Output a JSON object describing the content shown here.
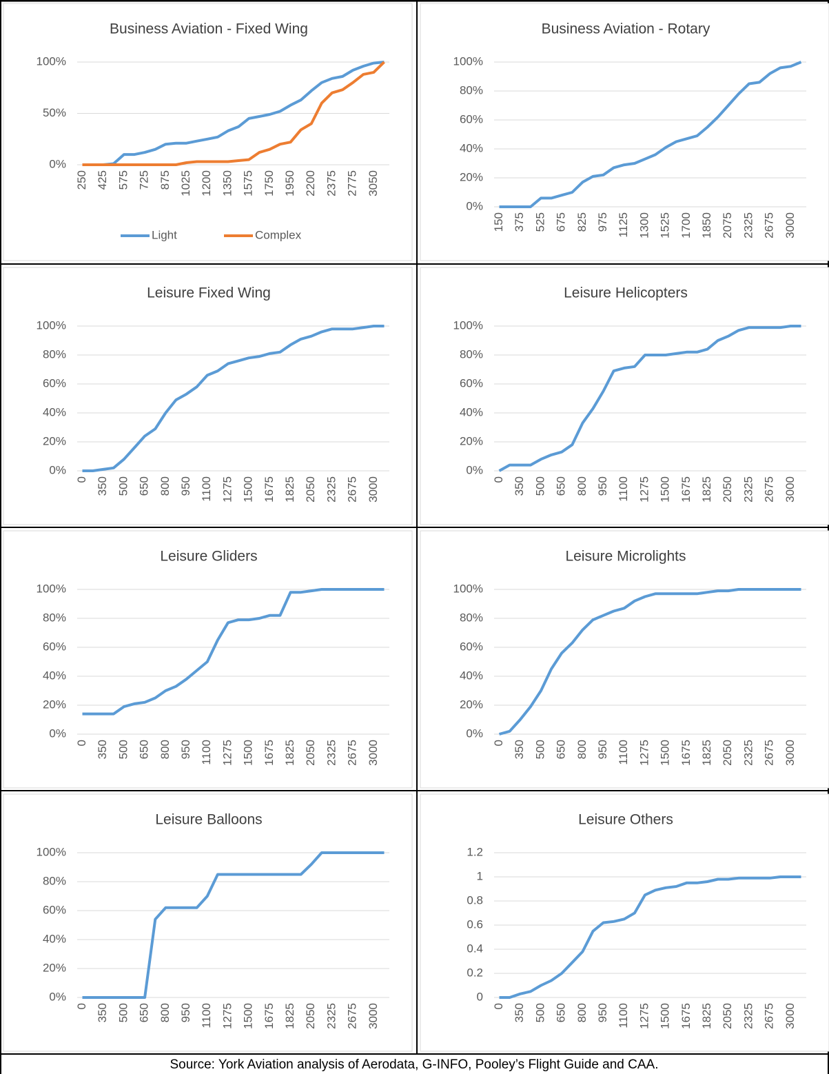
{
  "chart_data": [
    {
      "type": "line",
      "title": "Business Aviation - Fixed Wing",
      "legend": "bottom",
      "grid": true,
      "categories": [
        250,
        null,
        425,
        null,
        575,
        null,
        725,
        null,
        875,
        null,
        1025,
        null,
        1200,
        null,
        1350,
        null,
        1575,
        null,
        1750,
        null,
        1950,
        null,
        2200,
        null,
        2375,
        null,
        2775,
        null,
        3050,
        null
      ],
      "ylim": [
        0,
        100
      ],
      "yticks": [
        {
          "value": 0,
          "label": "0%"
        },
        {
          "value": 50,
          "label": "50%"
        },
        {
          "value": 100,
          "label": "100%"
        }
      ],
      "series": [
        {
          "name": "Light",
          "color": "#5b9bd5",
          "values": [
            0,
            0,
            0,
            1,
            10,
            10,
            12,
            15,
            20,
            21,
            21,
            23,
            25,
            27,
            33,
            37,
            45,
            47,
            49,
            52,
            58,
            63,
            72,
            80,
            84,
            86,
            92,
            96,
            99,
            100
          ]
        },
        {
          "name": "Complex",
          "color": "#ed7d31",
          "values": [
            0,
            0,
            0,
            0,
            0,
            0,
            0,
            0,
            0,
            0,
            2,
            3,
            3,
            3,
            3,
            4,
            5,
            12,
            15,
            20,
            22,
            34,
            40,
            60,
            70,
            73,
            80,
            88,
            90,
            100
          ]
        }
      ]
    },
    {
      "type": "line",
      "title": "Business Aviation - Rotary",
      "grid": true,
      "categories": [
        150,
        null,
        375,
        null,
        525,
        null,
        675,
        null,
        825,
        null,
        975,
        null,
        1125,
        null,
        1300,
        null,
        1525,
        null,
        1700,
        null,
        1850,
        null,
        2075,
        null,
        2325,
        null,
        2675,
        null,
        3000,
        null
      ],
      "ylim": [
        0,
        100
      ],
      "yticks": [
        {
          "value": 0,
          "label": "0%"
        },
        {
          "value": 20,
          "label": "20%"
        },
        {
          "value": 40,
          "label": "40%"
        },
        {
          "value": 60,
          "label": "60%"
        },
        {
          "value": 80,
          "label": "80%"
        },
        {
          "value": 100,
          "label": "100%"
        }
      ],
      "series": [
        {
          "color": "#5b9bd5",
          "values": [
            0,
            0,
            0,
            0,
            6,
            6,
            8,
            10,
            17,
            21,
            22,
            27,
            29,
            30,
            33,
            36,
            41,
            45,
            47,
            49,
            55,
            62,
            70,
            78,
            85,
            86,
            92,
            96,
            97,
            100
          ]
        }
      ]
    },
    {
      "type": "line",
      "title": "Leisure Fixed Wing",
      "grid": true,
      "categories": [
        0,
        null,
        350,
        null,
        500,
        null,
        650,
        null,
        800,
        null,
        950,
        null,
        1100,
        null,
        1275,
        null,
        1500,
        null,
        1675,
        null,
        1825,
        null,
        2050,
        null,
        2325,
        null,
        2675,
        null,
        3000,
        null
      ],
      "ylim": [
        0,
        100
      ],
      "yticks": [
        {
          "value": 0,
          "label": "0%"
        },
        {
          "value": 20,
          "label": "20%"
        },
        {
          "value": 40,
          "label": "40%"
        },
        {
          "value": 60,
          "label": "60%"
        },
        {
          "value": 80,
          "label": "80%"
        },
        {
          "value": 100,
          "label": "100%"
        }
      ],
      "series": [
        {
          "color": "#5b9bd5",
          "values": [
            0,
            0,
            1,
            2,
            8,
            16,
            24,
            29,
            40,
            49,
            53,
            58,
            66,
            69,
            74,
            76,
            78,
            79,
            81,
            82,
            87,
            91,
            93,
            96,
            98,
            98,
            98,
            99,
            100,
            100
          ]
        }
      ]
    },
    {
      "type": "line",
      "title": "Leisure Helicopters",
      "grid": true,
      "categories": [
        0,
        null,
        350,
        null,
        500,
        null,
        650,
        null,
        800,
        null,
        950,
        null,
        1100,
        null,
        1275,
        null,
        1500,
        null,
        1675,
        null,
        1825,
        null,
        2050,
        null,
        2325,
        null,
        2675,
        null,
        3000,
        null
      ],
      "ylim": [
        0,
        100
      ],
      "yticks": [
        {
          "value": 0,
          "label": "0%"
        },
        {
          "value": 20,
          "label": "20%"
        },
        {
          "value": 40,
          "label": "40%"
        },
        {
          "value": 60,
          "label": "60%"
        },
        {
          "value": 80,
          "label": "80%"
        },
        {
          "value": 100,
          "label": "100%"
        }
      ],
      "series": [
        {
          "color": "#5b9bd5",
          "values": [
            0,
            4,
            4,
            4,
            8,
            11,
            13,
            18,
            33,
            43,
            55,
            69,
            71,
            72,
            80,
            80,
            80,
            81,
            82,
            82,
            84,
            90,
            93,
            97,
            99,
            99,
            99,
            99,
            100,
            100
          ]
        }
      ]
    },
    {
      "type": "line",
      "title": "Leisure Gliders",
      "grid": true,
      "categories": [
        0,
        null,
        350,
        null,
        500,
        null,
        650,
        null,
        800,
        null,
        950,
        null,
        1100,
        null,
        1275,
        null,
        1500,
        null,
        1675,
        null,
        1825,
        null,
        2050,
        null,
        2325,
        null,
        2675,
        null,
        3000,
        null
      ],
      "ylim": [
        0,
        100
      ],
      "yticks": [
        {
          "value": 0,
          "label": "0%"
        },
        {
          "value": 20,
          "label": "20%"
        },
        {
          "value": 40,
          "label": "40%"
        },
        {
          "value": 60,
          "label": "60%"
        },
        {
          "value": 80,
          "label": "80%"
        },
        {
          "value": 100,
          "label": "100%"
        }
      ],
      "series": [
        {
          "color": "#5b9bd5",
          "values": [
            14,
            14,
            14,
            14,
            19,
            21,
            22,
            25,
            30,
            33,
            38,
            44,
            50,
            65,
            77,
            79,
            79,
            80,
            82,
            82,
            98,
            98,
            99,
            100,
            100,
            100,
            100,
            100,
            100,
            100
          ]
        }
      ]
    },
    {
      "type": "line",
      "title": "Leisure Microlights",
      "grid": true,
      "categories": [
        0,
        null,
        350,
        null,
        500,
        null,
        650,
        null,
        800,
        null,
        950,
        null,
        1100,
        null,
        1275,
        null,
        1500,
        null,
        1675,
        null,
        1825,
        null,
        2050,
        null,
        2325,
        null,
        2675,
        null,
        3000,
        null
      ],
      "ylim": [
        0,
        100
      ],
      "yticks": [
        {
          "value": 0,
          "label": "0%"
        },
        {
          "value": 20,
          "label": "20%"
        },
        {
          "value": 40,
          "label": "40%"
        },
        {
          "value": 60,
          "label": "60%"
        },
        {
          "value": 80,
          "label": "80%"
        },
        {
          "value": 100,
          "label": "100%"
        }
      ],
      "series": [
        {
          "color": "#5b9bd5",
          "values": [
            0,
            2,
            10,
            19,
            30,
            45,
            56,
            63,
            72,
            79,
            82,
            85,
            87,
            92,
            95,
            97,
            97,
            97,
            97,
            97,
            98,
            99,
            99,
            100,
            100,
            100,
            100,
            100,
            100,
            100
          ]
        }
      ]
    },
    {
      "type": "line",
      "title": "Leisure Balloons",
      "grid": true,
      "categories": [
        0,
        null,
        350,
        null,
        500,
        null,
        650,
        null,
        800,
        null,
        950,
        null,
        1100,
        null,
        1275,
        null,
        1500,
        null,
        1675,
        null,
        1825,
        null,
        2050,
        null,
        2325,
        null,
        2675,
        null,
        3000,
        null
      ],
      "ylim": [
        0,
        100
      ],
      "yticks": [
        {
          "value": 0,
          "label": "0%"
        },
        {
          "value": 20,
          "label": "20%"
        },
        {
          "value": 40,
          "label": "40%"
        },
        {
          "value": 60,
          "label": "60%"
        },
        {
          "value": 80,
          "label": "80%"
        },
        {
          "value": 100,
          "label": "100%"
        }
      ],
      "series": [
        {
          "color": "#5b9bd5",
          "values": [
            0,
            0,
            0,
            0,
            0,
            0,
            0,
            54,
            62,
            62,
            62,
            62,
            70,
            85,
            85,
            85,
            85,
            85,
            85,
            85,
            85,
            85,
            92,
            100,
            100,
            100,
            100,
            100,
            100,
            100
          ]
        }
      ]
    },
    {
      "type": "line",
      "title": "Leisure Others",
      "grid": true,
      "categories": [
        0,
        null,
        350,
        null,
        500,
        null,
        650,
        null,
        800,
        null,
        950,
        null,
        1100,
        null,
        1275,
        null,
        1500,
        null,
        1675,
        null,
        1825,
        null,
        2050,
        null,
        2325,
        null,
        2675,
        null,
        3000,
        null
      ],
      "ylim": [
        0,
        1.2
      ],
      "yticks": [
        0,
        0.2,
        0.4,
        0.6,
        0.8,
        1,
        1.2
      ],
      "series": [
        {
          "color": "#5b9bd5",
          "values": [
            0,
            0,
            0.03,
            0.05,
            0.1,
            0.14,
            0.2,
            0.29,
            0.38,
            0.55,
            0.62,
            0.63,
            0.65,
            0.7,
            0.85,
            0.89,
            0.91,
            0.92,
            0.95,
            0.95,
            0.96,
            0.98,
            0.98,
            0.99,
            0.99,
            0.99,
            0.99,
            1,
            1,
            1
          ]
        }
      ]
    }
  ],
  "source": "Source: York Aviation analysis of Aerodata, G-INFO, Pooley’s Flight Guide and CAA."
}
